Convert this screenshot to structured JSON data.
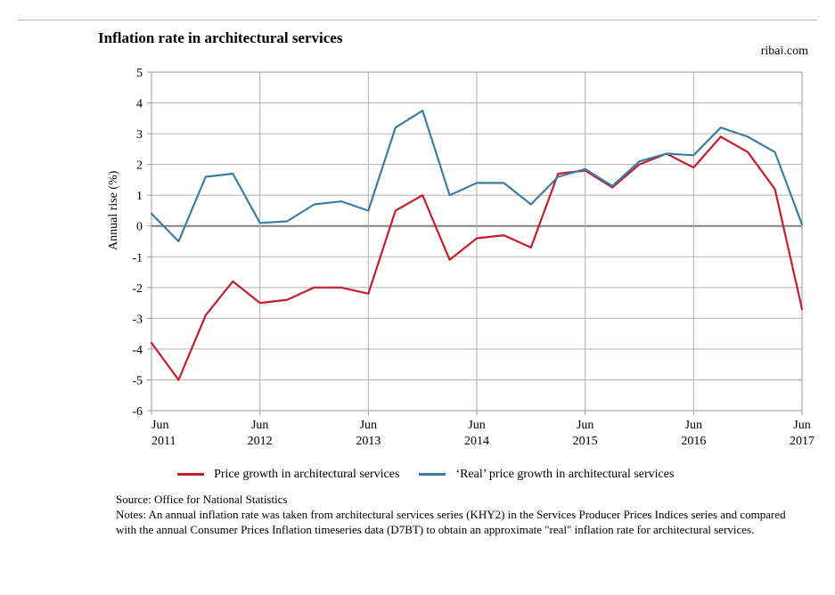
{
  "title": "Inflation rate in architectural services",
  "attribution": "ribaj.com",
  "chart": {
    "type": "line",
    "background_color": "#ffffff",
    "grid_color": "#b0b0b0",
    "axis_color": "#9a9a9a",
    "zero_line_color": "#808080",
    "zero_line_width": 2,
    "plot_border_color": "#9a9a9a",
    "yaxis": {
      "label": "Annual rise (%)",
      "min": -6,
      "max": 5,
      "ticks": [
        -6,
        -5,
        -4,
        -3,
        -2,
        -1,
        0,
        1,
        2,
        3,
        4,
        5
      ],
      "label_fontsize": 14,
      "tick_fontsize": 14
    },
    "xaxis": {
      "tick_top": [
        "Jun",
        "Jun",
        "Jun",
        "Jun",
        "Jun",
        "Jun",
        "Jun"
      ],
      "tick_bottom": [
        "2011",
        "2012",
        "2013",
        "2014",
        "2015",
        "2016",
        "2017"
      ],
      "tick_fontsize": 14,
      "n_points": 25
    },
    "series": [
      {
        "name": "Price growth in architectural services",
        "color": "#c41e2e",
        "line_width": 2.2,
        "values": [
          -3.8,
          -5.0,
          -2.9,
          -1.8,
          -2.5,
          -2.4,
          -2.0,
          -2.0,
          -2.2,
          0.5,
          1.0,
          -1.1,
          -0.4,
          -0.3,
          -0.7,
          1.7,
          1.8,
          1.25,
          2.0,
          2.35,
          1.9,
          2.9,
          2.4,
          1.2,
          -2.7
        ]
      },
      {
        "name": "‘Real’ price growth in architectural services",
        "color": "#3a7ea4",
        "line_width": 2.2,
        "values": [
          0.4,
          -0.5,
          1.6,
          1.7,
          0.1,
          0.15,
          0.7,
          0.8,
          0.5,
          3.2,
          3.75,
          1.0,
          1.4,
          1.4,
          0.7,
          1.6,
          1.85,
          1.3,
          2.1,
          2.35,
          2.3,
          3.2,
          2.9,
          2.4,
          0.05
        ]
      }
    ]
  },
  "legend": {
    "items": [
      {
        "label": "Price growth in architectural services",
        "color": "#c41e2e"
      },
      {
        "label": "‘Real’ price growth in architectural services",
        "color": "#3a7ea4"
      }
    ]
  },
  "footer": {
    "source": "Source: Office for National Statistics",
    "notes": "Notes: An annual inflation rate was taken from architectural services series (KHY2) in the Services Producer Prices Indices series and compared with the annual Consumer Prices Inflation timeseries data (D7BT) to obtain an approximate \"real\" inflation rate for architectural services."
  }
}
